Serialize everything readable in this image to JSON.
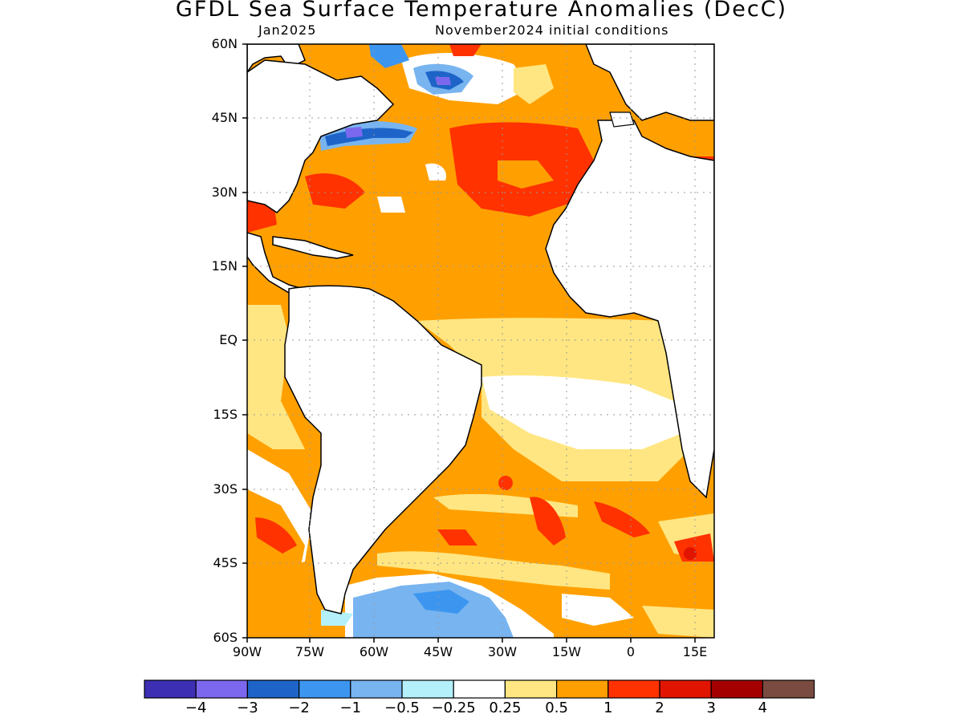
{
  "title": "GFDL Sea Surface Temperature Anomalies (DecC)",
  "subtitle_left": "Jan2025",
  "subtitle_right": "November2024 initial conditions",
  "lat_labels": [
    "60N",
    "45N",
    "30N",
    "15N",
    "EQ",
    "15S",
    "30S",
    "45S",
    "60S"
  ],
  "lon_labels": [
    "90W",
    "75W",
    "60W",
    "45W",
    "30W",
    "15W",
    "0",
    "15E"
  ],
  "colorbar": {
    "colors": [
      "#3c2fb4",
      "#7b68ee",
      "#1e64c8",
      "#3c96f0",
      "#78b4f0",
      "#b4f0fa",
      "#ffffff",
      "#ffe682",
      "#ffa000",
      "#ff3200",
      "#e11400",
      "#a50000",
      "#7a4b40"
    ],
    "labels": [
      "-4",
      "-3",
      "-2",
      "-1",
      "-0.5",
      "-0.25",
      "0.25",
      "0.5",
      "1",
      "2",
      "3",
      "4"
    ]
  }
}
